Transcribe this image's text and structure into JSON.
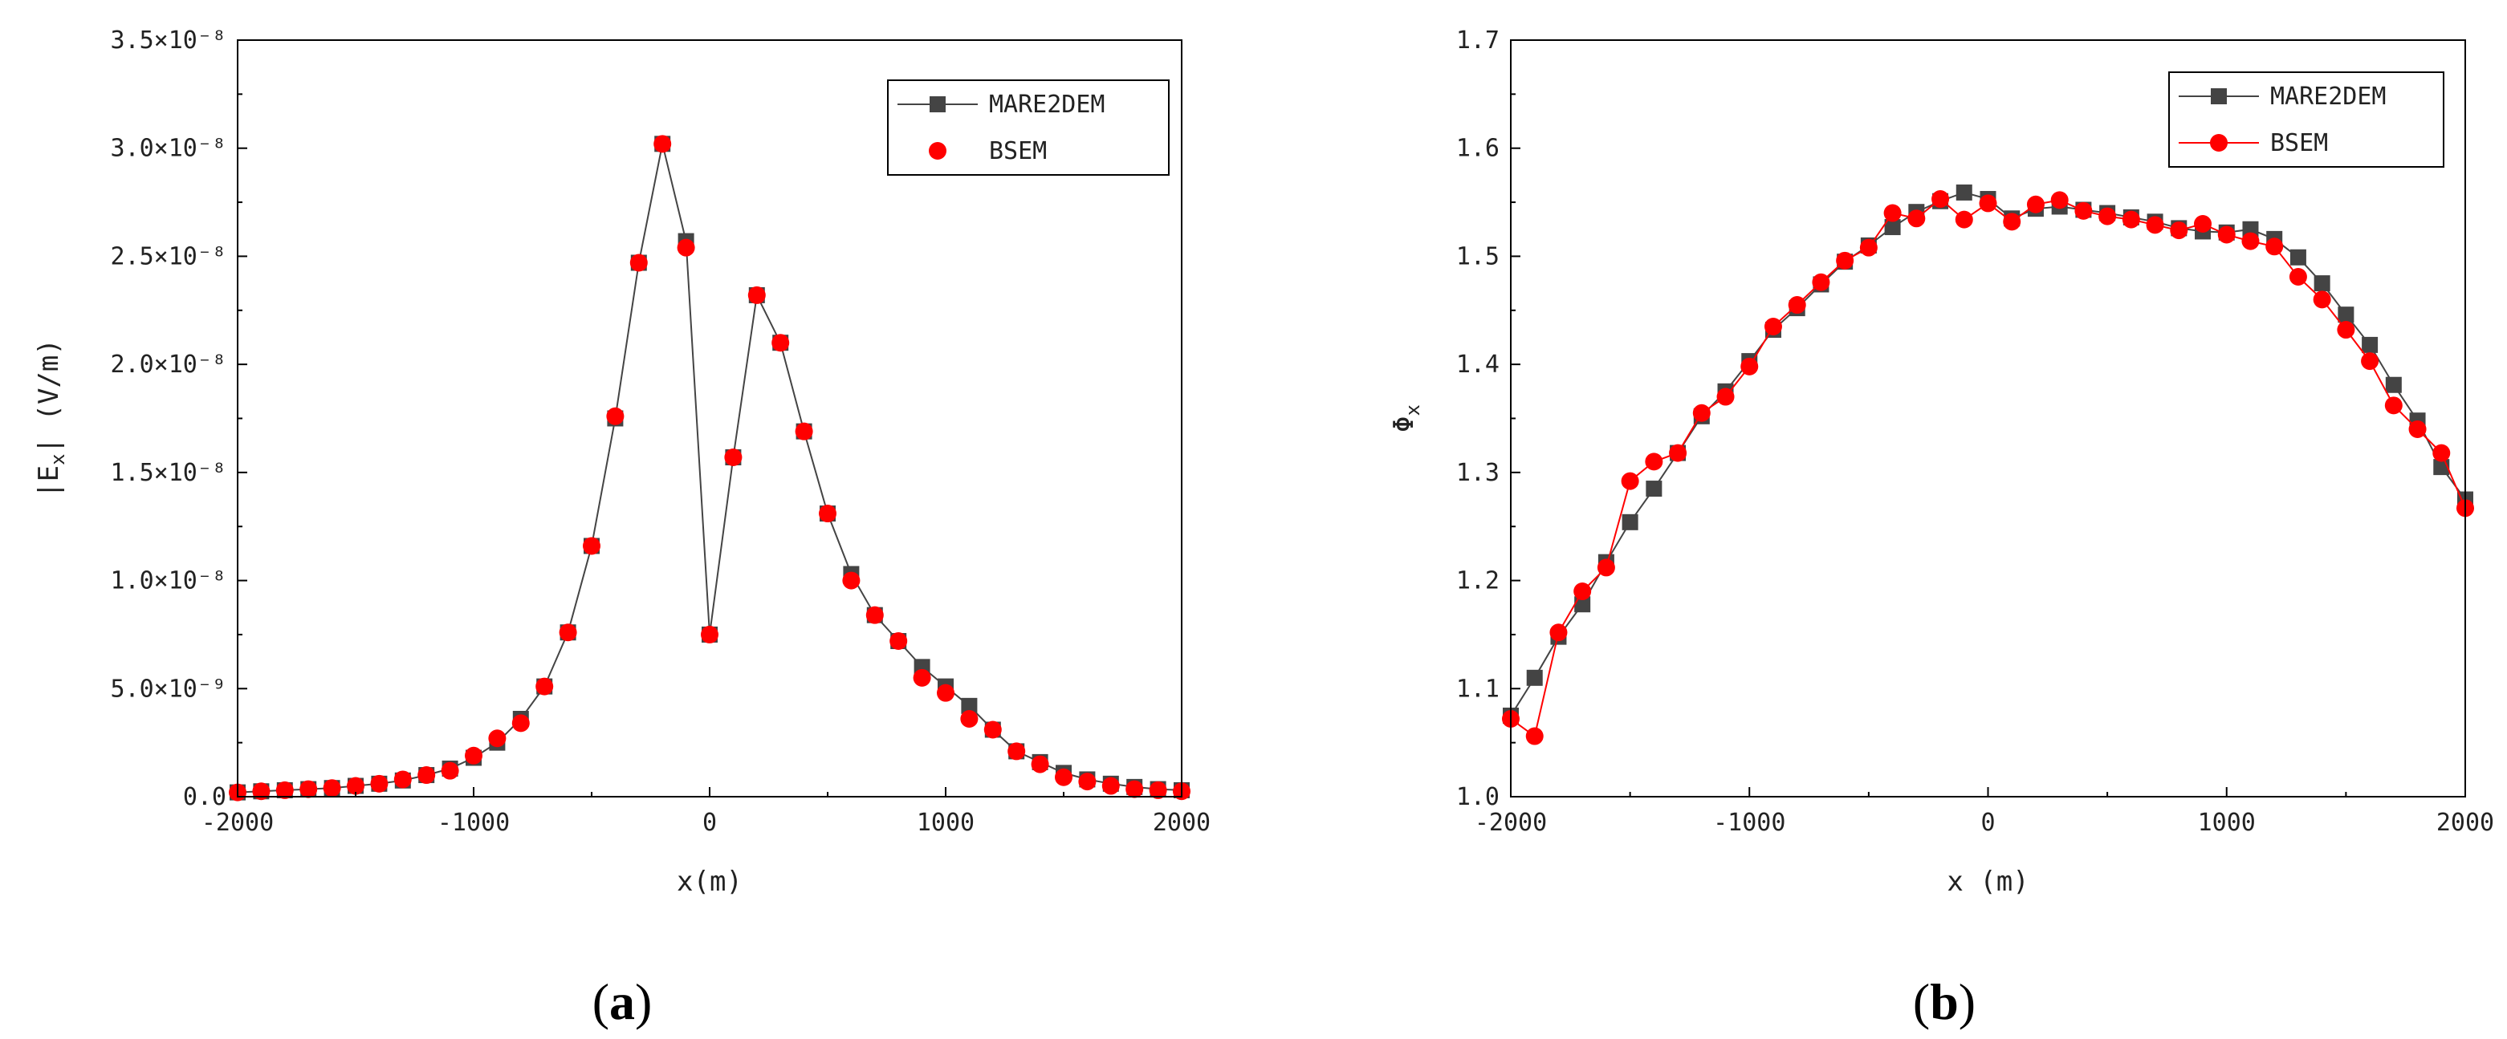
{
  "colors": {
    "mare2dem": "#444444",
    "bsem": "#ff0000",
    "axis": "#000000"
  },
  "chart_data": [
    {
      "id": "a",
      "type": "line",
      "panel_label": "(a)",
      "panel_letter": "a",
      "xlabel": "x(m)",
      "ylabel": "|Ex| (V/m)",
      "ylabel_parts": {
        "pre": "|E",
        "sub": "x",
        "post": "| (V/m)"
      },
      "xlim": [
        -2000,
        2000
      ],
      "ylim": [
        0,
        3.5e-08
      ],
      "x_ticks": [
        "-2000",
        "-1000",
        "0",
        "1000",
        "2000"
      ],
      "y_ticks": [
        "0.0",
        "5.0×10⁻⁹",
        "1.0×10⁻⁸",
        "1.5×10⁻⁸",
        "2.0×10⁻⁸",
        "2.5×10⁻⁸",
        "3.0×10⁻⁸",
        "3.5×10⁻⁸"
      ],
      "legend": {
        "position": "top-right",
        "entries": [
          "MARE2DEM",
          "BSEM"
        ]
      },
      "x": [
        -2000,
        -1900,
        -1800,
        -1700,
        -1600,
        -1500,
        -1400,
        -1300,
        -1200,
        -1100,
        -1000,
        -900,
        -800,
        -700,
        -600,
        -500,
        -400,
        -300,
        -200,
        -100,
        0,
        100,
        200,
        300,
        400,
        500,
        600,
        700,
        800,
        900,
        1000,
        1100,
        1200,
        1300,
        1400,
        1500,
        1600,
        1700,
        1800,
        1900,
        2000
      ],
      "series": [
        {
          "name": "MARE2DEM",
          "marker": "square",
          "line": true,
          "values": [
            2e-10,
            2.5e-10,
            3e-10,
            3.5e-10,
            4e-10,
            5e-10,
            6e-10,
            7.5e-10,
            1e-09,
            1.3e-09,
            1.8e-09,
            2.5e-09,
            3.6e-09,
            5.1e-09,
            7.6e-09,
            1.16e-08,
            1.75e-08,
            2.47e-08,
            3.02e-08,
            2.57e-08,
            7.5e-09,
            1.57e-08,
            2.32e-08,
            2.1e-08,
            1.69e-08,
            1.31e-08,
            1.03e-08,
            8.4e-09,
            7.2e-09,
            6e-09,
            5.1e-09,
            4.2e-09,
            3.1e-09,
            2.1e-09,
            1.6e-09,
            1.1e-09,
            8e-10,
            6e-10,
            4.5e-10,
            3.5e-10,
            3e-10
          ]
        },
        {
          "name": "BSEM",
          "marker": "circle",
          "line": false,
          "values": [
            2e-10,
            2.5e-10,
            3e-10,
            3.5e-10,
            4e-10,
            5e-10,
            6e-10,
            8e-10,
            1e-09,
            1.2e-09,
            1.9e-09,
            2.7e-09,
            3.4e-09,
            5.1e-09,
            7.6e-09,
            1.16e-08,
            1.76e-08,
            2.47e-08,
            3.02e-08,
            2.54e-08,
            7.5e-09,
            1.57e-08,
            2.32e-08,
            2.1e-08,
            1.69e-08,
            1.31e-08,
            1e-08,
            8.4e-09,
            7.2e-09,
            5.5e-09,
            4.8e-09,
            3.6e-09,
            3.1e-09,
            2.1e-09,
            1.5e-09,
            9e-10,
            7e-10,
            5e-10,
            3.5e-10,
            3e-10,
            2.5e-10
          ]
        }
      ]
    },
    {
      "id": "b",
      "type": "line",
      "panel_label": "(b)",
      "panel_letter": "b",
      "xlabel": "x (m)",
      "ylabel": "Φx",
      "ylabel_parts": {
        "pre": "Φ",
        "sub": "x",
        "post": ""
      },
      "xlim": [
        -2000,
        2000
      ],
      "ylim": [
        1.0,
        1.7
      ],
      "x_ticks": [
        "-2000",
        "-1000",
        "0",
        "1000",
        "2000"
      ],
      "y_ticks": [
        "1.0",
        "1.1",
        "1.2",
        "1.3",
        "1.4",
        "1.5",
        "1.6",
        "1.7"
      ],
      "legend": {
        "position": "top-right",
        "entries": [
          "MARE2DEM",
          "BSEM"
        ]
      },
      "x": [
        -2000,
        -1900,
        -1800,
        -1700,
        -1600,
        -1500,
        -1400,
        -1300,
        -1200,
        -1100,
        -1000,
        -900,
        -800,
        -700,
        -600,
        -500,
        -400,
        -300,
        -200,
        -100,
        0,
        100,
        200,
        300,
        400,
        500,
        600,
        700,
        800,
        900,
        1000,
        1100,
        1200,
        1300,
        1400,
        1500,
        1600,
        1700,
        1800,
        1900,
        2000
      ],
      "series": [
        {
          "name": "MARE2DEM",
          "marker": "square",
          "line": true,
          "values": [
            1.075,
            1.11,
            1.148,
            1.178,
            1.217,
            1.254,
            1.285,
            1.318,
            1.352,
            1.375,
            1.403,
            1.432,
            1.452,
            1.474,
            1.495,
            1.51,
            1.527,
            1.541,
            1.551,
            1.559,
            1.553,
            1.535,
            1.544,
            1.546,
            1.543,
            1.54,
            1.536,
            1.532,
            1.526,
            1.523,
            1.522,
            1.525,
            1.516,
            1.499,
            1.475,
            1.446,
            1.418,
            1.381,
            1.348,
            1.305,
            1.275
          ]
        },
        {
          "name": "BSEM",
          "marker": "circle",
          "line": true,
          "values": [
            1.072,
            1.056,
            1.152,
            1.19,
            1.212,
            1.292,
            1.31,
            1.318,
            1.355,
            1.37,
            1.398,
            1.435,
            1.455,
            1.476,
            1.496,
            1.508,
            1.54,
            1.535,
            1.553,
            1.534,
            1.549,
            1.532,
            1.548,
            1.552,
            1.542,
            1.537,
            1.534,
            1.529,
            1.524,
            1.53,
            1.52,
            1.514,
            1.509,
            1.481,
            1.46,
            1.432,
            1.403,
            1.362,
            1.34,
            1.318,
            1.267
          ]
        }
      ]
    }
  ]
}
